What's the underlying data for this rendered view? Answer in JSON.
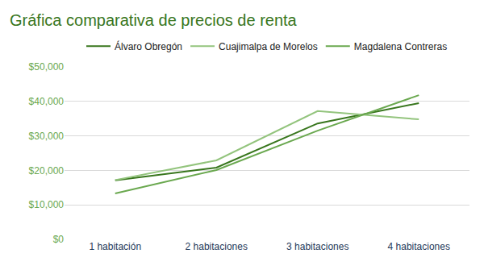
{
  "chart_data": {
    "type": "line",
    "title": "Gráfica comparativa de precios de renta",
    "categories": [
      "1 habitación",
      "2 habitaciones",
      "3 habitaciones",
      "4 habitaciones"
    ],
    "series": [
      {
        "name": "Álvaro Obregón",
        "color": "#38761d",
        "values": [
          17100,
          20800,
          33600,
          39500
        ]
      },
      {
        "name": "Cuajimalpa de Morelos",
        "color": "#93c47d",
        "values": [
          17200,
          22900,
          37200,
          34800
        ]
      },
      {
        "name": "Magdalena Contreras",
        "color": "#6aa84f",
        "values": [
          13300,
          20100,
          31500,
          41800
        ]
      }
    ],
    "ylim": [
      0,
      50000
    ],
    "yticks": [
      {
        "value": 0,
        "label": "$0"
      },
      {
        "value": 10000,
        "label": "$10,000"
      },
      {
        "value": 20000,
        "label": "$20,000"
      },
      {
        "value": 30000,
        "label": "$30,000"
      },
      {
        "value": 40000,
        "label": "$40,000"
      },
      {
        "value": 50000,
        "label": "$50,000"
      }
    ],
    "grid": true,
    "legend": "top"
  }
}
